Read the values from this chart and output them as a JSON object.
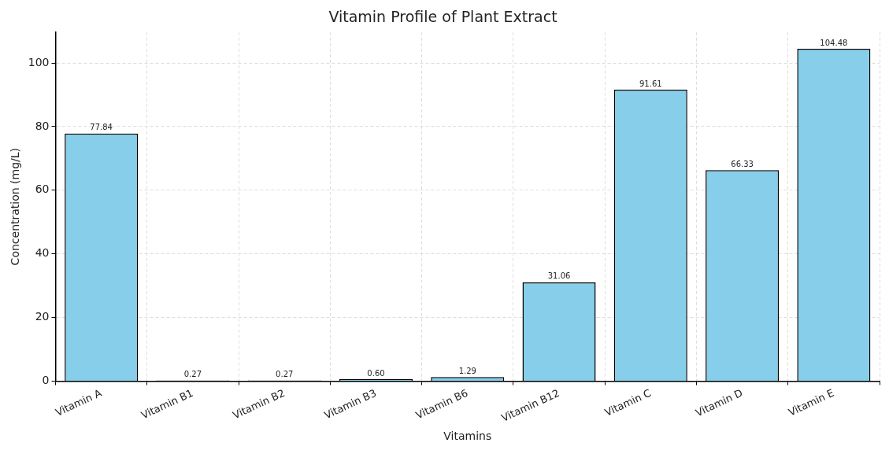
{
  "chart_data": {
    "type": "bar",
    "title": "Vitamin Profile of Plant Extract",
    "xlabel": "Vitamins",
    "ylabel": "Concentration (mg/L)",
    "categories": [
      "Vitamin A",
      "Vitamin B1",
      "Vitamin B2",
      "Vitamin B3",
      "Vitamin B6",
      "Vitamin B12",
      "Vitamin C",
      "Vitamin D",
      "Vitamin E"
    ],
    "values": [
      77.84,
      0.27,
      0.27,
      0.6,
      1.29,
      31.06,
      91.61,
      66.33,
      104.48
    ],
    "value_labels": [
      "77.84",
      "0.27",
      "0.27",
      "0.60",
      "1.29",
      "31.06",
      "91.61",
      "66.33",
      "104.48"
    ],
    "color": "#87ceeb",
    "ylim": [
      0,
      109.7
    ],
    "yticks": [
      0,
      20,
      40,
      60,
      80,
      100
    ],
    "grid": true
  }
}
